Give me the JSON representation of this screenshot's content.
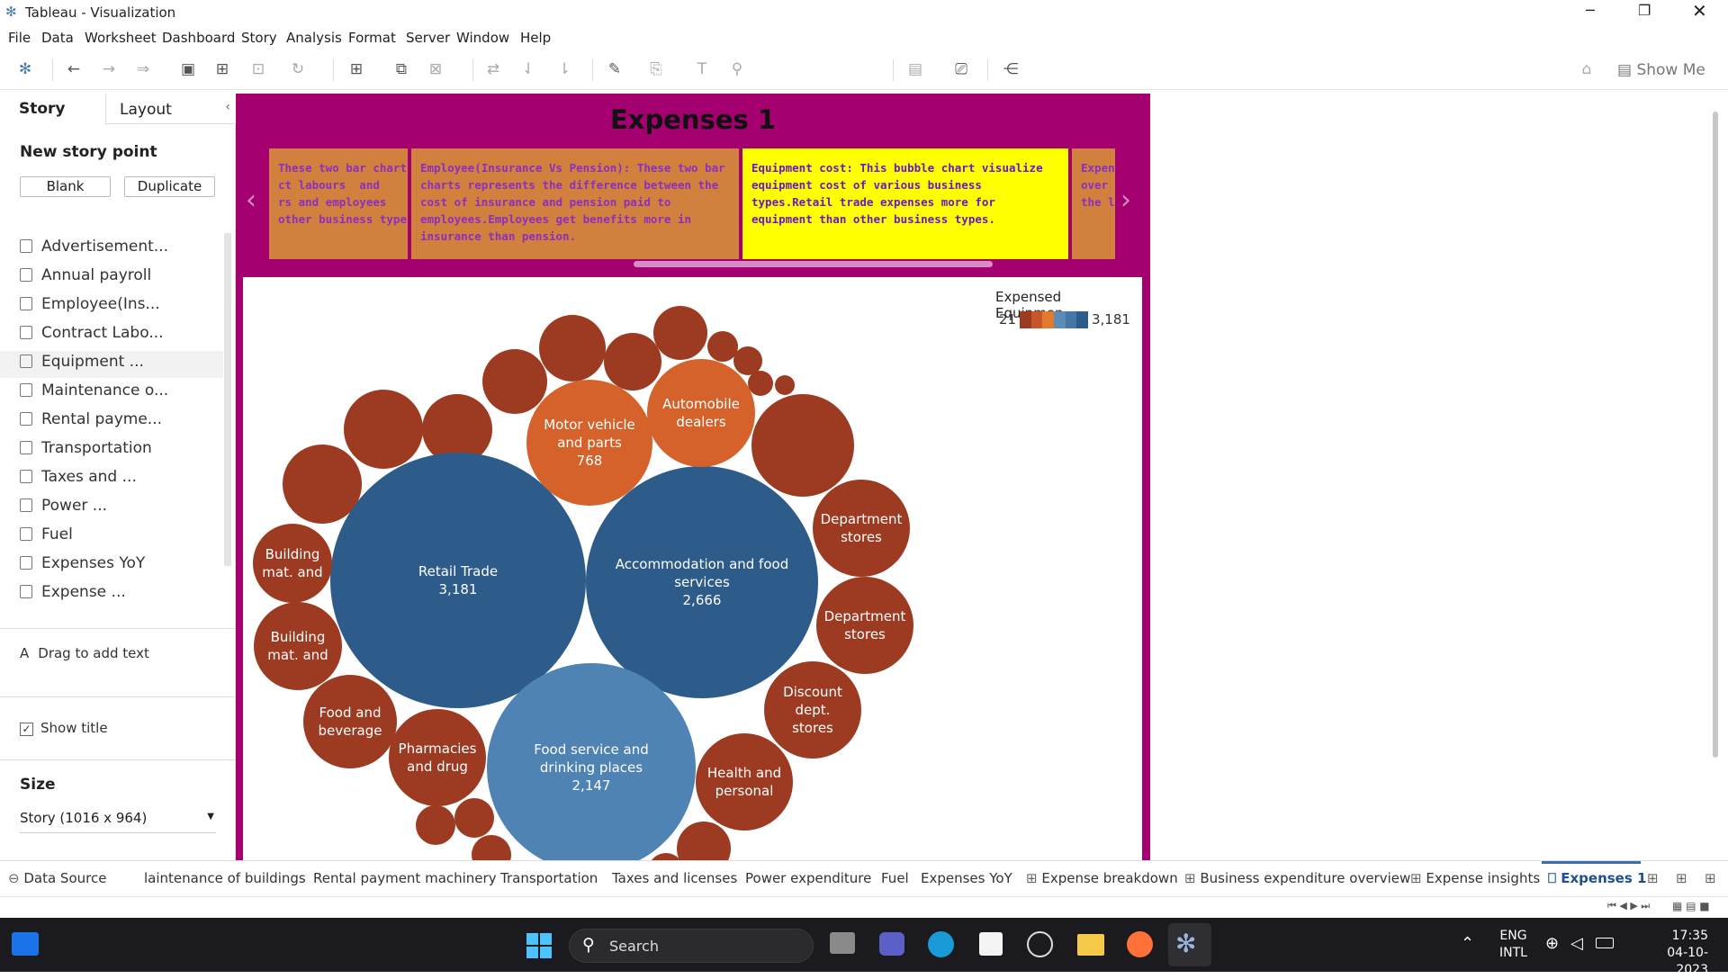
{
  "window": {
    "title": "Tableau - Visualization"
  },
  "menu": [
    "File",
    "Data",
    "Worksheet",
    "Dashboard",
    "Story",
    "Analysis",
    "Format",
    "Server",
    "Window",
    "Help"
  ],
  "toolbar": {
    "show_me": "Show Me"
  },
  "side": {
    "tab_story": "Story",
    "tab_layout": "Layout",
    "new_story_point": "New story point",
    "blank": "Blank",
    "duplicate": "Duplicate",
    "sheets": [
      "Advertisement...",
      "Annual payroll",
      "Employee(Ins...",
      "Contract Labo...",
      "Equipment ...",
      "Maintenance o...",
      "Rental payme...",
      "Transportation",
      "Taxes and ...",
      "Power ...",
      "Fuel",
      "Expenses YoY",
      "Expense ..."
    ],
    "drag_text": "Drag to add text",
    "show_title": "Show title",
    "size_label": "Size",
    "size_value": "Story (1016 x 964)"
  },
  "story": {
    "title": "Expenses 1",
    "captions": [
      "These two bar charts\nct labours  and\nrs and employees\nother business types.",
      "Employee(Insurance Vs Pension): These two bar charts represents the difference between the cost of insurance and pension paid to employees.Employees get benefits more in insurance than pension.",
      "Equipment cost: This bubble chart visualize equipment cost of various business types.Retail trade expenses more for equipment than other business types.",
      "Expen\nover y\nthe lo"
    ]
  },
  "chart_data": {
    "type": "bubble",
    "legend_title": "Expensed Equipmen..",
    "legend_min": "21",
    "legend_max": "3,181",
    "colors": [
      "#9c3b22",
      "#c9562a",
      "#e27a2e",
      "#3b6d9b",
      "#5b8cb8",
      "#2d5b8a"
    ],
    "bubbles": [
      {
        "label": "Retail Trade",
        "value": "3,181",
        "color": "#2d5b8a"
      },
      {
        "label": "Accommodation and food services",
        "value": "2,666",
        "color": "#2d5b8a"
      },
      {
        "label": "Food service and drinking places",
        "value": "2,147",
        "color": "#4f83b4"
      },
      {
        "label": "Motor vehicle and parts",
        "value": "768",
        "color": "#d4622a"
      },
      {
        "label": "Automobile dealers",
        "value": "",
        "color": "#d4622a"
      },
      {
        "label": "Department stores",
        "value": "",
        "color": "#9c3b22"
      },
      {
        "label": "Department stores",
        "value": "",
        "color": "#9c3b22"
      },
      {
        "label": "Discount dept. stores",
        "value": "",
        "color": "#9c3b22"
      },
      {
        "label": "Health and personal",
        "value": "",
        "color": "#9c3b22"
      },
      {
        "label": "Pharmacies and drug",
        "value": "",
        "color": "#9c3b22"
      },
      {
        "label": "Food and beverage",
        "value": "",
        "color": "#9c3b22"
      },
      {
        "label": "Building mat. and",
        "value": "",
        "color": "#9c3b22"
      },
      {
        "label": "Building mat. and",
        "value": "",
        "color": "#9c3b22"
      }
    ]
  },
  "tabs": [
    "Data Source",
    "laintenance of buildings",
    "Rental payment machinery",
    "Transportation",
    "Taxes and licenses",
    "Power expenditure",
    "Fuel",
    "Expenses YoY",
    "Expense breakdown",
    "Business expenditure overview",
    "Expense insights",
    "Expenses 1"
  ],
  "taskbar": {
    "search": "Search",
    "lang1": "ENG",
    "lang2": "INTL",
    "time": "17:35",
    "date": "04-10-2023"
  }
}
